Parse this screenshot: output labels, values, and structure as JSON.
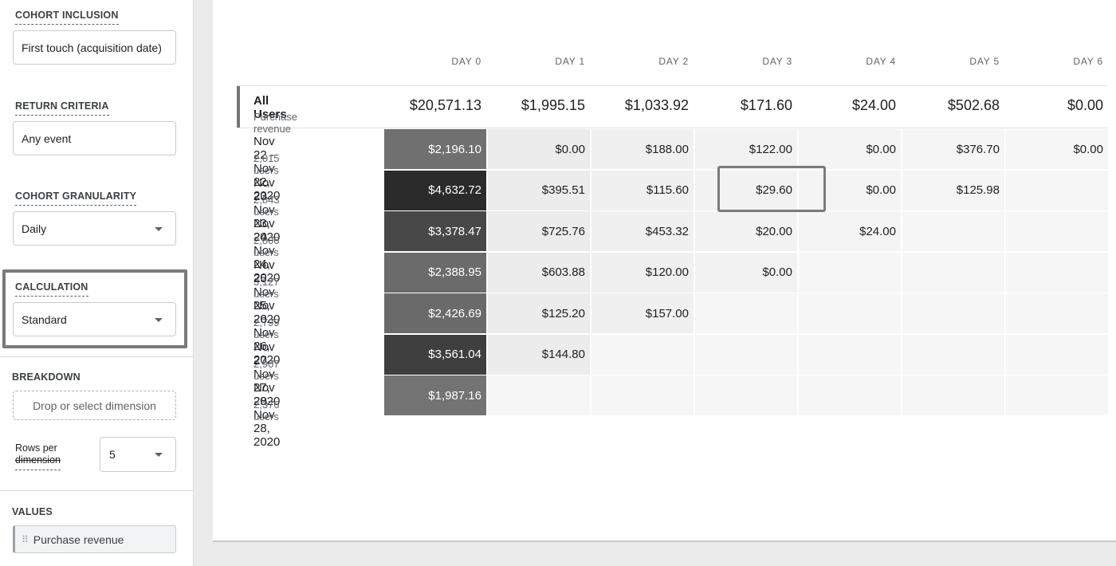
{
  "sidebar": {
    "cohort_inclusion": {
      "label": "COHORT INCLUSION",
      "value": "First touch (acquisition date)"
    },
    "return_criteria": {
      "label": "RETURN CRITERIA",
      "value": "Any event"
    },
    "cohort_granularity": {
      "label": "COHORT GRANULARITY",
      "value": "Daily"
    },
    "calculation": {
      "label": "CALCULATION",
      "value": "Standard"
    },
    "breakdown": {
      "label": "BREAKDOWN",
      "placeholder": "Drop or select dimension"
    },
    "rows_per_dimension": {
      "label_line1": "Rows per",
      "label_line2": "dimension",
      "value": "5"
    },
    "values": {
      "label": "VALUES",
      "chip": "Purchase revenue"
    }
  },
  "table": {
    "day_headers": [
      "DAY 0",
      "DAY 1",
      "DAY 2",
      "DAY 3",
      "DAY 4",
      "DAY 5",
      "DAY 6"
    ],
    "totals": {
      "title": "All Users",
      "subtitle": "Purchase revenue",
      "values": [
        "$20,571.13",
        "$1,995.15",
        "$1,033.92",
        "$171.60",
        "$24.00",
        "$502.68",
        "$0.00"
      ]
    },
    "rows": [
      {
        "date": "Nov 22 - Nov 22, 2020",
        "users": "2,015 users",
        "values": [
          "$2,196.10",
          "$0.00",
          "$188.00",
          "$122.00",
          "$0.00",
          "$376.70",
          "$0.00"
        ]
      },
      {
        "date": "Nov 23 - Nov 23, 2020",
        "users": "2,843 users",
        "values": [
          "$4,632.72",
          "$395.51",
          "$115.60",
          "$29.60",
          "$0.00",
          "$125.98",
          ""
        ]
      },
      {
        "date": "Nov 24 - Nov 24, 2020",
        "users": "2,806 users",
        "values": [
          "$3,378.47",
          "$725.76",
          "$453.32",
          "$20.00",
          "$24.00",
          "",
          ""
        ]
      },
      {
        "date": "Nov 25 - Nov 25, 2020",
        "users": "3,127 users",
        "values": [
          "$2,388.95",
          "$603.88",
          "$120.00",
          "$0.00",
          "",
          "",
          ""
        ]
      },
      {
        "date": "Nov 26 - Nov 26, 2020",
        "users": "2,799 users",
        "values": [
          "$2,426.69",
          "$125.20",
          "$157.00",
          "",
          "",
          "",
          ""
        ]
      },
      {
        "date": "Nov 27 - Nov 27, 2020",
        "users": "2,907 users",
        "values": [
          "$3,561.04",
          "$144.80",
          "",
          "",
          "",
          "",
          ""
        ]
      },
      {
        "date": "Nov 28 - Nov 28, 2020",
        "users": "2,376 users",
        "values": [
          "$1,987.16",
          "",
          "",
          "",
          "",
          "",
          ""
        ]
      }
    ]
  }
}
